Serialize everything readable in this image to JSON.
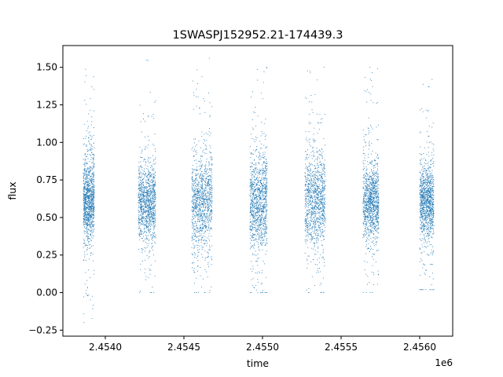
{
  "chart_data": {
    "type": "scatter",
    "title": "1SWASPJ152952.21-174439.3",
    "xlabel": "time",
    "ylabel": "flux",
    "x_offset_label": "1e6",
    "xlim": [
      2.45373,
      2.45621
    ],
    "ylim": [
      -0.29,
      1.645
    ],
    "grid": false,
    "point_color": "#1f77b4",
    "x_ticks": [
      {
        "value": 2.454,
        "label": "2.4540"
      },
      {
        "value": 2.4545,
        "label": "2.4545"
      },
      {
        "value": 2.455,
        "label": "2.4550"
      },
      {
        "value": 2.4555,
        "label": "2.4555"
      },
      {
        "value": 2.456,
        "label": "2.4560"
      }
    ],
    "y_ticks": [
      {
        "value": -0.25,
        "label": "−0.25"
      },
      {
        "value": 0.0,
        "label": "0.00"
      },
      {
        "value": 0.25,
        "label": "0.25"
      },
      {
        "value": 0.5,
        "label": "0.50"
      },
      {
        "value": 0.75,
        "label": "0.75"
      },
      {
        "value": 1.0,
        "label": "1.00"
      },
      {
        "value": 1.25,
        "label": "1.25"
      },
      {
        "value": 1.5,
        "label": "1.50"
      }
    ],
    "observing_seasons": [
      {
        "x_start": 2.45386,
        "x_end": 2.45393,
        "flux_center": 0.62,
        "flux_spread": 0.17,
        "flux_min": -0.2,
        "flux_max": 1.54
      },
      {
        "x_start": 2.45421,
        "x_end": 2.45432,
        "flux_center": 0.6,
        "flux_spread": 0.16,
        "flux_min": 0.0,
        "flux_max": 1.55
      },
      {
        "x_start": 2.45455,
        "x_end": 2.45468,
        "flux_center": 0.6,
        "flux_spread": 0.2,
        "flux_min": 0.0,
        "flux_max": 1.56
      },
      {
        "x_start": 2.45492,
        "x_end": 2.45503,
        "flux_center": 0.6,
        "flux_spread": 0.2,
        "flux_min": 0.0,
        "flux_max": 1.5
      },
      {
        "x_start": 2.45527,
        "x_end": 2.4554,
        "flux_center": 0.62,
        "flux_spread": 0.2,
        "flux_min": 0.0,
        "flux_max": 1.5
      },
      {
        "x_start": 2.45564,
        "x_end": 2.45574,
        "flux_center": 0.6,
        "flux_spread": 0.16,
        "flux_min": 0.0,
        "flux_max": 1.5
      },
      {
        "x_start": 2.456,
        "x_end": 2.45609,
        "flux_center": 0.6,
        "flux_spread": 0.16,
        "flux_min": 0.02,
        "flux_max": 1.53
      }
    ]
  }
}
